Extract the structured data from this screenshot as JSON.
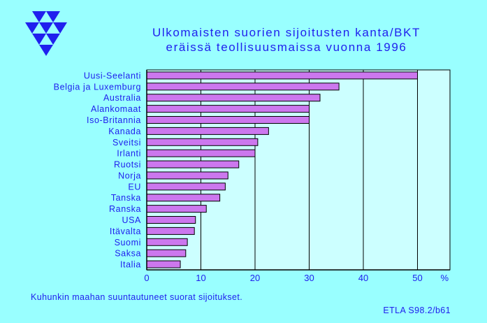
{
  "header": {
    "logo_name": "etla-logo",
    "title_line1": "Ulkomaisten suorien sijoitusten kanta/BKT",
    "title_line2": "eräissä teollisuusmaissa vuonna 1996"
  },
  "chart_data": {
    "type": "bar",
    "orientation": "horizontal",
    "title": "Ulkomaisten suorien sijoitusten kanta/BKT eräissä teollisuusmaissa vuonna 1996",
    "categories": [
      "Uusi-Seelanti",
      "Belgia ja Luxemburg",
      "Australia",
      "Alankomaat",
      "Iso-Britannia",
      "Kanada",
      "Sveitsi",
      "Irlanti",
      "Ruotsi",
      "Norja",
      "EU",
      "Tanska",
      "Ranska",
      "USA",
      "Itävalta",
      "Suomi",
      "Saksa",
      "Italia"
    ],
    "values": [
      50,
      35.5,
      32,
      30,
      30,
      22.5,
      20.5,
      20,
      17,
      15,
      14.5,
      13.5,
      11,
      9,
      8.8,
      7.5,
      7.2,
      6.2
    ],
    "xticks": [
      "0",
      "10",
      "20",
      "30",
      "40",
      "50"
    ],
    "unit_label": "%",
    "xlim": [
      0,
      56
    ],
    "grid": "vertical",
    "colors": {
      "bar_fill": "#cc77ee",
      "bar_stroke": "#000000",
      "plot_background": "#ccffff",
      "page_background": "#99ffff",
      "text": "#2020ee",
      "axis": "#000000"
    }
  },
  "footer": {
    "note": "Kuhunkin maahan suuntautuneet suorat sijoitukset.",
    "source": "ETLA S98.2/b61"
  }
}
